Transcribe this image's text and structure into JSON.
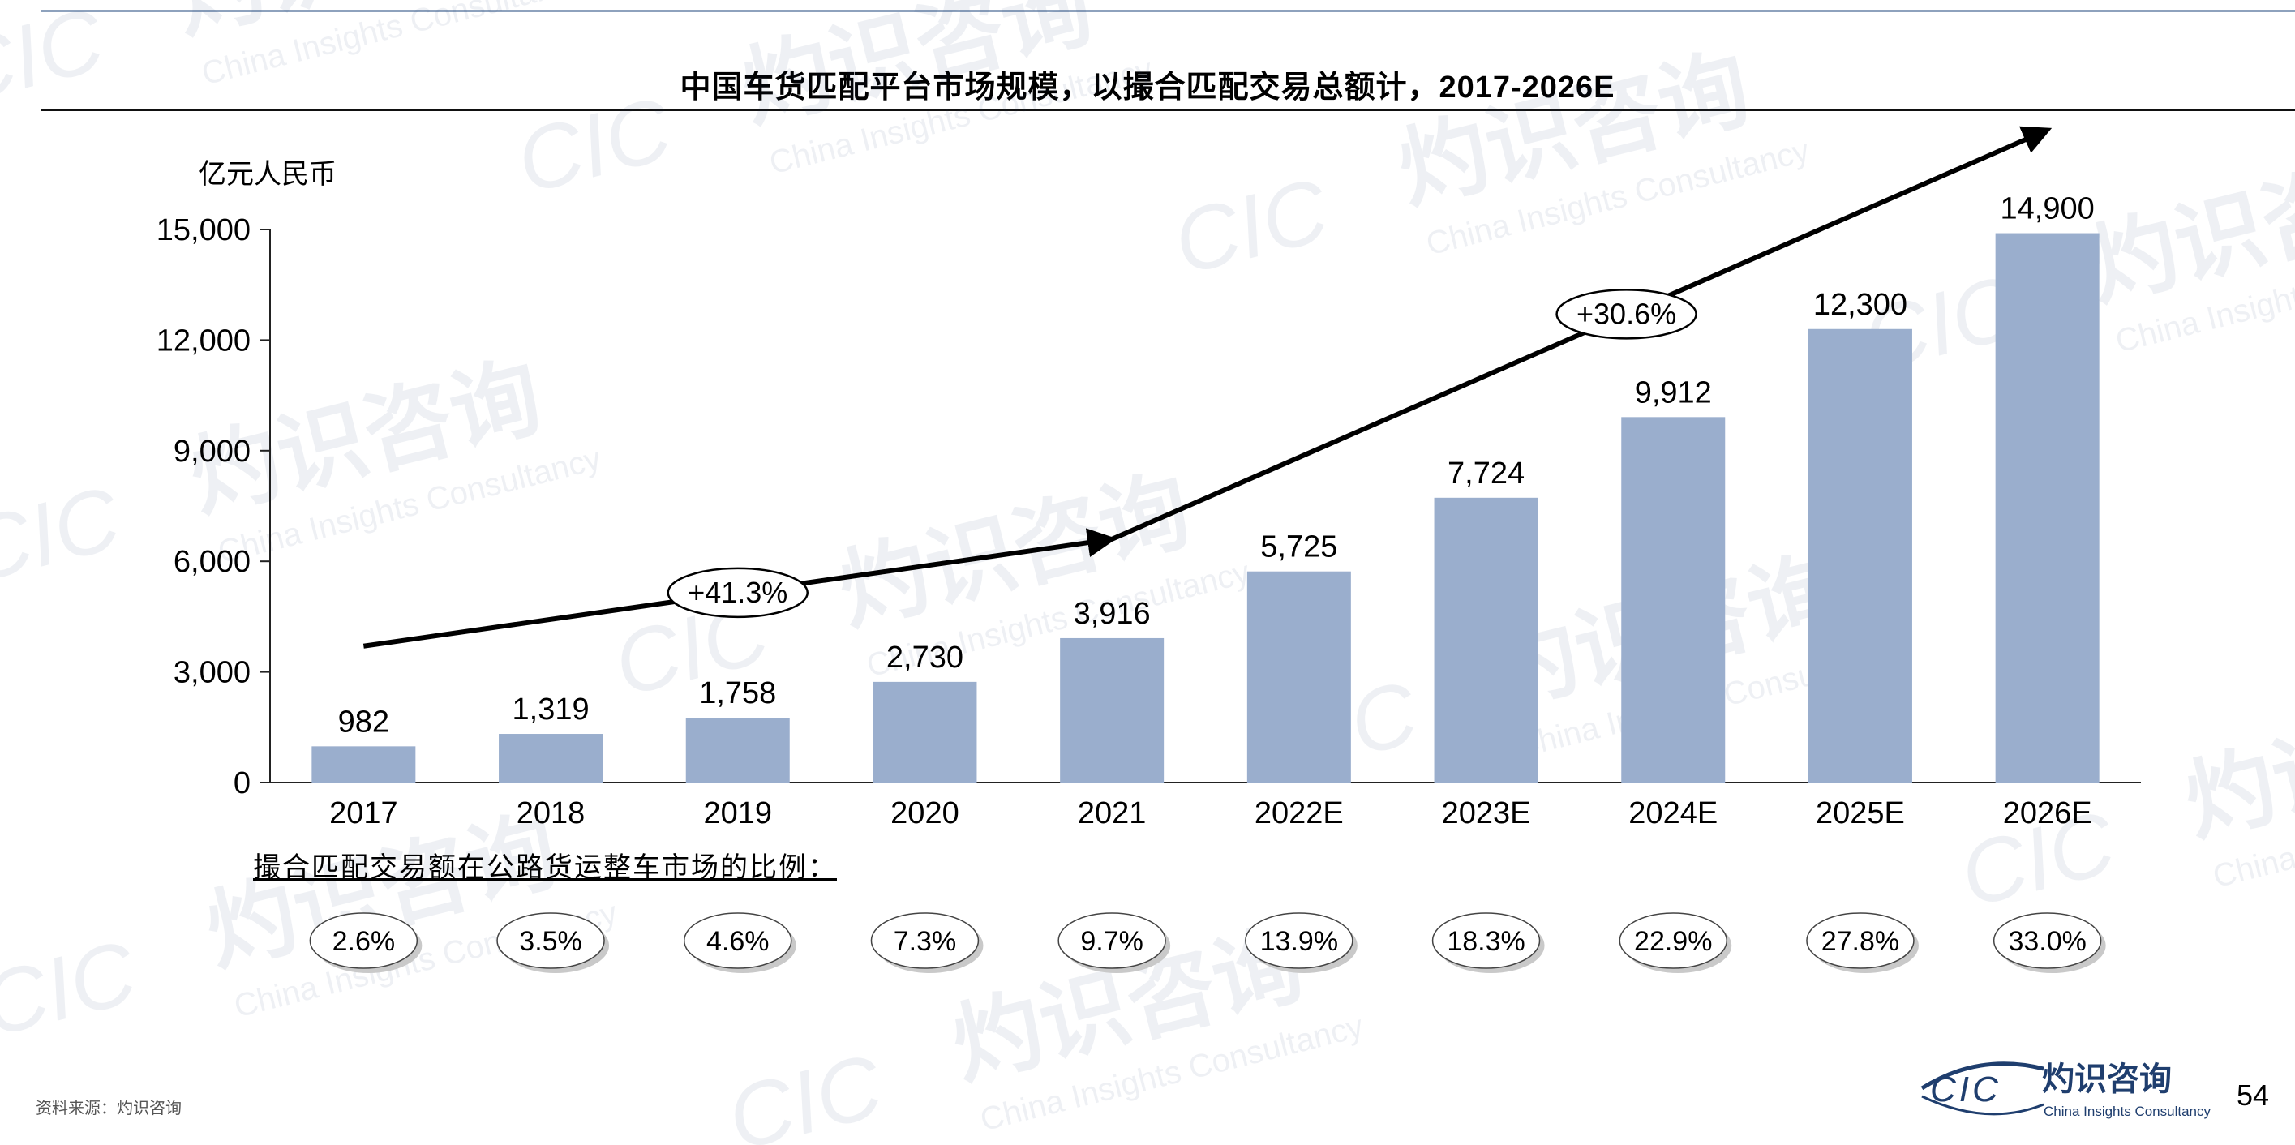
{
  "page": {
    "title": "中国车货匹配平台市场规模，以撮合匹配交易总额计，2017-2026E",
    "unit": "亿元人民币",
    "ratio_label": "撮合匹配交易额在公路货运整车市场的比例：",
    "source": "资料来源：灼识咨询",
    "page_number": "54",
    "logo": {
      "mark": "CIC",
      "name_cn": "灼识咨询",
      "name_en": "China Insights Consultancy"
    },
    "watermark": {
      "cn": "灼识咨询",
      "en": "China Insights Consultancy",
      "mark": "CIC"
    }
  },
  "chart_data": {
    "type": "bar",
    "categories": [
      "2017",
      "2018",
      "2019",
      "2020",
      "2021",
      "2022E",
      "2023E",
      "2024E",
      "2025E",
      "2026E"
    ],
    "values": [
      982,
      1319,
      1758,
      2730,
      3916,
      5725,
      7724,
      9912,
      12300,
      14900
    ],
    "value_labels": [
      "982",
      "1,319",
      "1,758",
      "2,730",
      "3,916",
      "5,725",
      "7,724",
      "9,912",
      "12,300",
      "14,900"
    ],
    "ylim": [
      0,
      15000
    ],
    "yticks": [
      0,
      3000,
      6000,
      9000,
      12000,
      15000
    ],
    "ytick_labels": [
      "0",
      "3,000",
      "6,000",
      "9,000",
      "12,000",
      "15,000"
    ],
    "ylabel": "亿元人民币",
    "bar_color": "#9aaecd",
    "cagr": [
      {
        "label": "+41.3%",
        "from": "2017",
        "to": "2021"
      },
      {
        "label": "+30.6%",
        "from": "2021",
        "to": "2026E"
      }
    ],
    "ratios": [
      "2.6%",
      "3.5%",
      "4.6%",
      "7.3%",
      "9.7%",
      "13.9%",
      "18.3%",
      "22.9%",
      "27.8%",
      "33.0%"
    ]
  }
}
